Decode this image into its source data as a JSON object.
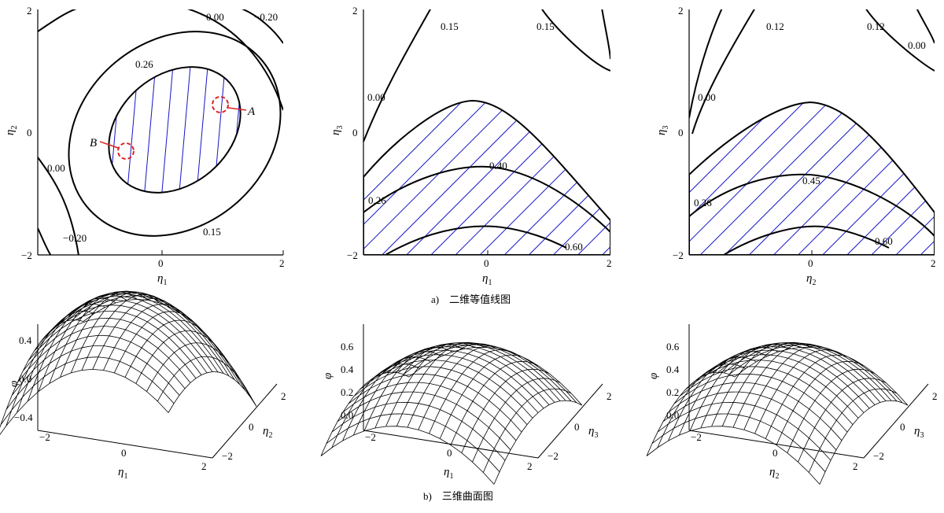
{
  "captions": {
    "a": "a)　二维等值线图",
    "b": "b)　三维曲面图"
  },
  "colors": {
    "hatch": "#1414c8",
    "marker": "#e02020",
    "line": "#000000"
  },
  "panels_2d": [
    {
      "ylabel": "η",
      "ysub": "2",
      "xlabel": "η",
      "xsub": "1",
      "yticks": [
        "2",
        "0",
        "−2"
      ],
      "xticks": [
        "0",
        "2"
      ],
      "contour_labels": [
        "0.00",
        "−0.20",
        "0.26",
        "0.00",
        "−0.20",
        "0.15"
      ],
      "points": [
        "A",
        "B"
      ]
    },
    {
      "ylabel": "η",
      "ysub": "3",
      "xlabel": "η",
      "xsub": "1",
      "yticks": [
        "2",
        "0",
        "−2"
      ],
      "xticks": [
        "0",
        "2"
      ],
      "contour_labels": [
        "0.15",
        "0.15",
        "0.00",
        "0.40",
        "0.26",
        "0.60"
      ]
    },
    {
      "ylabel": "η",
      "ysub": "3",
      "xlabel": "η",
      "xsub": "2",
      "yticks": [
        "2",
        "0",
        "−2"
      ],
      "xticks": [
        "0",
        "2"
      ],
      "contour_labels": [
        "0.12",
        "0.12",
        "0.00",
        "0.00",
        "0.45",
        "0.26",
        "0.60"
      ]
    }
  ],
  "panels_3d": [
    {
      "zlabel": "φ",
      "zticks": [
        "0.4",
        "0.0",
        "−0.4"
      ],
      "xlabel": "η",
      "xsub": "1",
      "xticks": [
        "−2",
        "0",
        "2"
      ],
      "ylabel": "η",
      "ysub": "2",
      "yticks": [
        "2",
        "0",
        "−2"
      ]
    },
    {
      "zlabel": "φ",
      "zticks": [
        "0.6",
        "0.4",
        "0.2",
        "0.0"
      ],
      "xlabel": "η",
      "xsub": "1",
      "xticks": [
        "−2",
        "0",
        "2"
      ],
      "ylabel": "η",
      "ysub": "3",
      "yticks": [
        "2",
        "0",
        "−2"
      ]
    },
    {
      "zlabel": "φ",
      "zticks": [
        "0.6",
        "0.4",
        "0.2",
        "0.0"
      ],
      "xlabel": "η",
      "xsub": "2",
      "xticks": [
        "−2",
        "0",
        "2"
      ],
      "ylabel": "η",
      "ysub": "3",
      "yticks": [
        "2",
        "0",
        "−2"
      ]
    }
  ]
}
